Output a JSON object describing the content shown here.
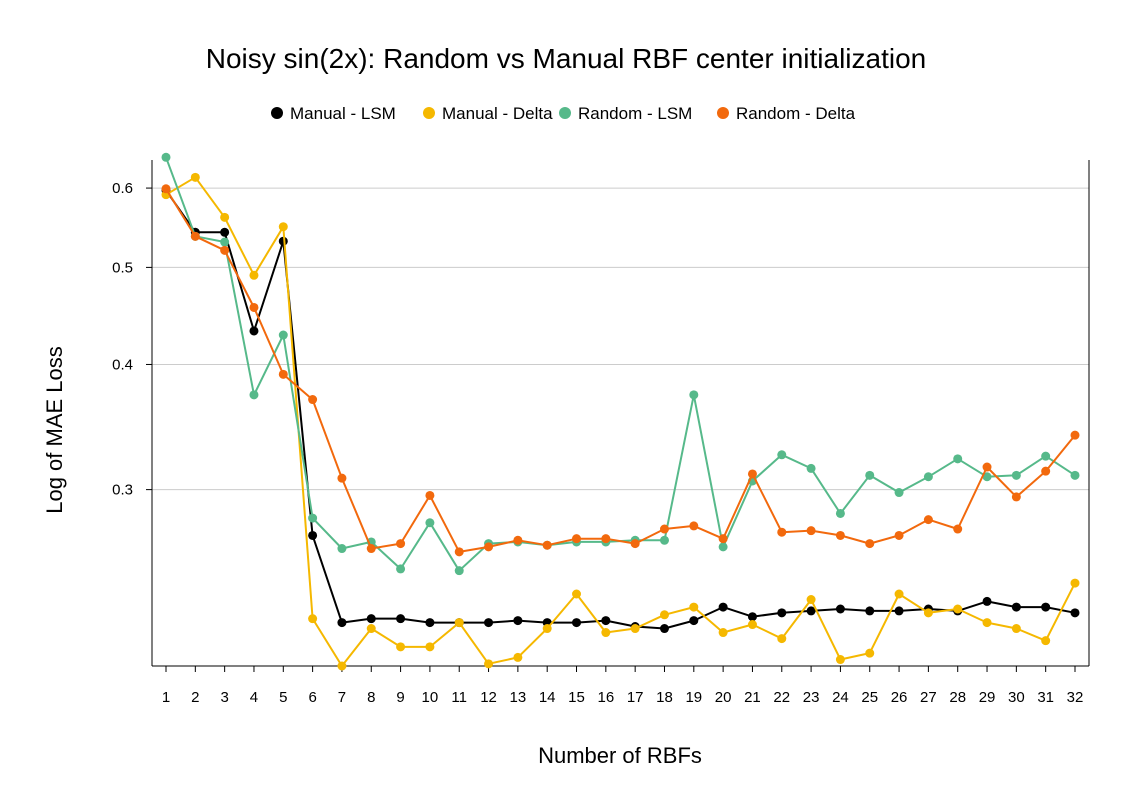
{
  "chart_data": {
    "type": "line",
    "title": "Noisy sin(2x): Random vs Manual RBF center initialization",
    "xlabel": "Number of RBFs",
    "ylabel": "Log of MAE Loss",
    "yscale": "log",
    "ylim": [
      0.2,
      0.64
    ],
    "yticks": [
      "0.3",
      "0.4",
      "0.5",
      "0.6"
    ],
    "grid": "horizontal",
    "legend_position": "top",
    "x": [
      1,
      2,
      3,
      4,
      5,
      6,
      7,
      8,
      9,
      10,
      11,
      12,
      13,
      14,
      15,
      16,
      17,
      18,
      19,
      20,
      21,
      22,
      23,
      24,
      25,
      26,
      27,
      28,
      29,
      30,
      31,
      32
    ],
    "series": [
      {
        "name": "Manual - LSM",
        "color": "#000000",
        "values": [
          0.597,
          0.542,
          0.542,
          0.432,
          0.531,
          0.27,
          0.221,
          0.223,
          0.223,
          0.221,
          0.221,
          0.221,
          0.222,
          0.221,
          0.221,
          0.222,
          0.219,
          0.218,
          0.222,
          0.229,
          0.224,
          0.226,
          0.227,
          0.228,
          0.227,
          0.227,
          0.228,
          0.227,
          0.232,
          0.229,
          0.229,
          0.226
        ]
      },
      {
        "name": "Manual - Delta",
        "color": "#f5b800",
        "values": [
          0.591,
          0.615,
          0.561,
          0.491,
          0.549,
          0.223,
          0.2,
          0.218,
          0.209,
          0.209,
          0.221,
          0.201,
          0.204,
          0.218,
          0.236,
          0.216,
          0.218,
          0.225,
          0.229,
          0.216,
          0.22,
          0.213,
          0.233,
          0.203,
          0.206,
          0.236,
          0.226,
          0.228,
          0.221,
          0.218,
          0.212,
          0.242
        ]
      },
      {
        "name": "Random - LSM",
        "color": "#56b98a",
        "values": [
          0.644,
          0.537,
          0.53,
          0.373,
          0.428,
          0.281,
          0.262,
          0.266,
          0.25,
          0.278,
          0.249,
          0.265,
          0.266,
          0.264,
          0.266,
          0.266,
          0.267,
          0.267,
          0.373,
          0.263,
          0.306,
          0.325,
          0.315,
          0.284,
          0.31,
          0.298,
          0.309,
          0.322,
          0.309,
          0.31,
          0.324,
          0.31
        ]
      },
      {
        "name": "Random - Delta",
        "color": "#f2690d",
        "values": [
          0.599,
          0.537,
          0.52,
          0.456,
          0.391,
          0.369,
          0.308,
          0.262,
          0.265,
          0.296,
          0.26,
          0.263,
          0.267,
          0.264,
          0.268,
          0.268,
          0.265,
          0.274,
          0.276,
          0.268,
          0.311,
          0.272,
          0.273,
          0.27,
          0.265,
          0.27,
          0.28,
          0.274,
          0.316,
          0.295,
          0.313,
          0.34
        ]
      }
    ]
  }
}
